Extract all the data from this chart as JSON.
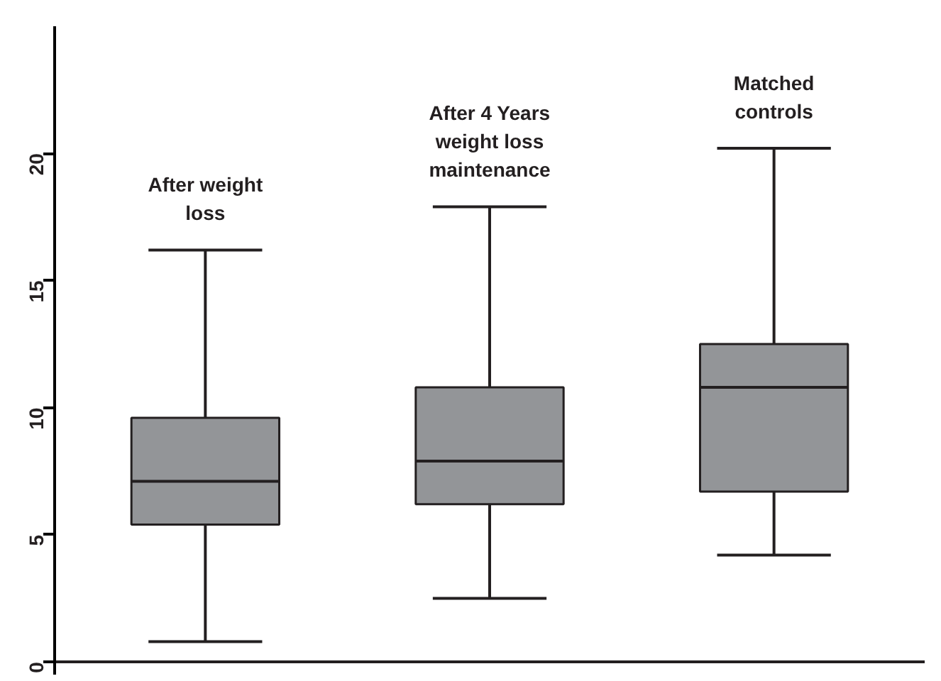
{
  "chart_data": {
    "type": "box",
    "categories": [
      "After weight\nloss",
      "After 4 Years\nweight loss\nmaintenance",
      "Matched\ncontrols"
    ],
    "boxes": [
      {
        "low": 0.8,
        "q1": 5.4,
        "median": 7.1,
        "q3": 9.6,
        "high": 16.2
      },
      {
        "low": 2.5,
        "q1": 6.2,
        "median": 7.9,
        "q3": 10.8,
        "high": 17.9
      },
      {
        "low": 4.2,
        "q1": 6.7,
        "median": 10.8,
        "q3": 12.5,
        "high": 20.2
      }
    ],
    "color": "#939598",
    "ylim": [
      -0.5,
      25
    ],
    "yticks": [
      0,
      5,
      10,
      15,
      20
    ],
    "tick_labels": "y"
  }
}
